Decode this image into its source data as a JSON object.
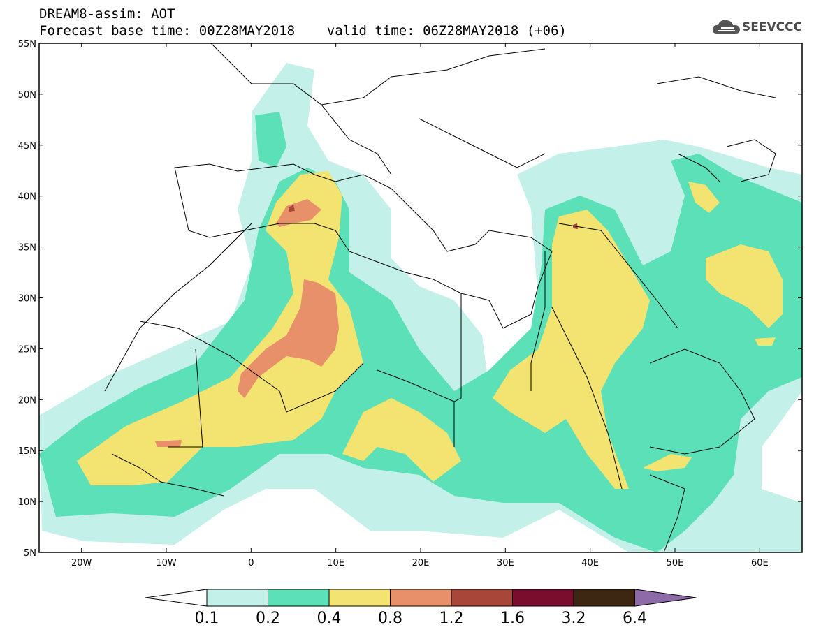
{
  "header": {
    "line1": "DREAM8-assim: AOT",
    "line2": "Forecast base time: 00Z28MAY2018    valid time: 06Z28MAY2018 (+06)"
  },
  "logo": {
    "text": "SEEVCCC",
    "icon": "cloud-icon"
  },
  "map": {
    "lon_range": [
      -25,
      65
    ],
    "lat_range": [
      5,
      55
    ],
    "lat_labels": [
      "55N",
      "50N",
      "45N",
      "40N",
      "35N",
      "30N",
      "25N",
      "20N",
      "15N",
      "10N",
      "5N"
    ],
    "lon_labels": [
      "20W",
      "10W",
      "0",
      "10E",
      "20E",
      "30E",
      "40E",
      "50E",
      "60E"
    ]
  },
  "colorbar": {
    "labels": [
      "0.1",
      "0.2",
      "0.4",
      "0.8",
      "1.2",
      "1.6",
      "3.2",
      "6.4"
    ],
    "colors": [
      "#ffffff",
      "#c3f0e8",
      "#5ce0b8",
      "#f3e370",
      "#e8906a",
      "#a9463a",
      "#7a0c2e",
      "#3e2712",
      "#8e6aa8"
    ]
  }
}
